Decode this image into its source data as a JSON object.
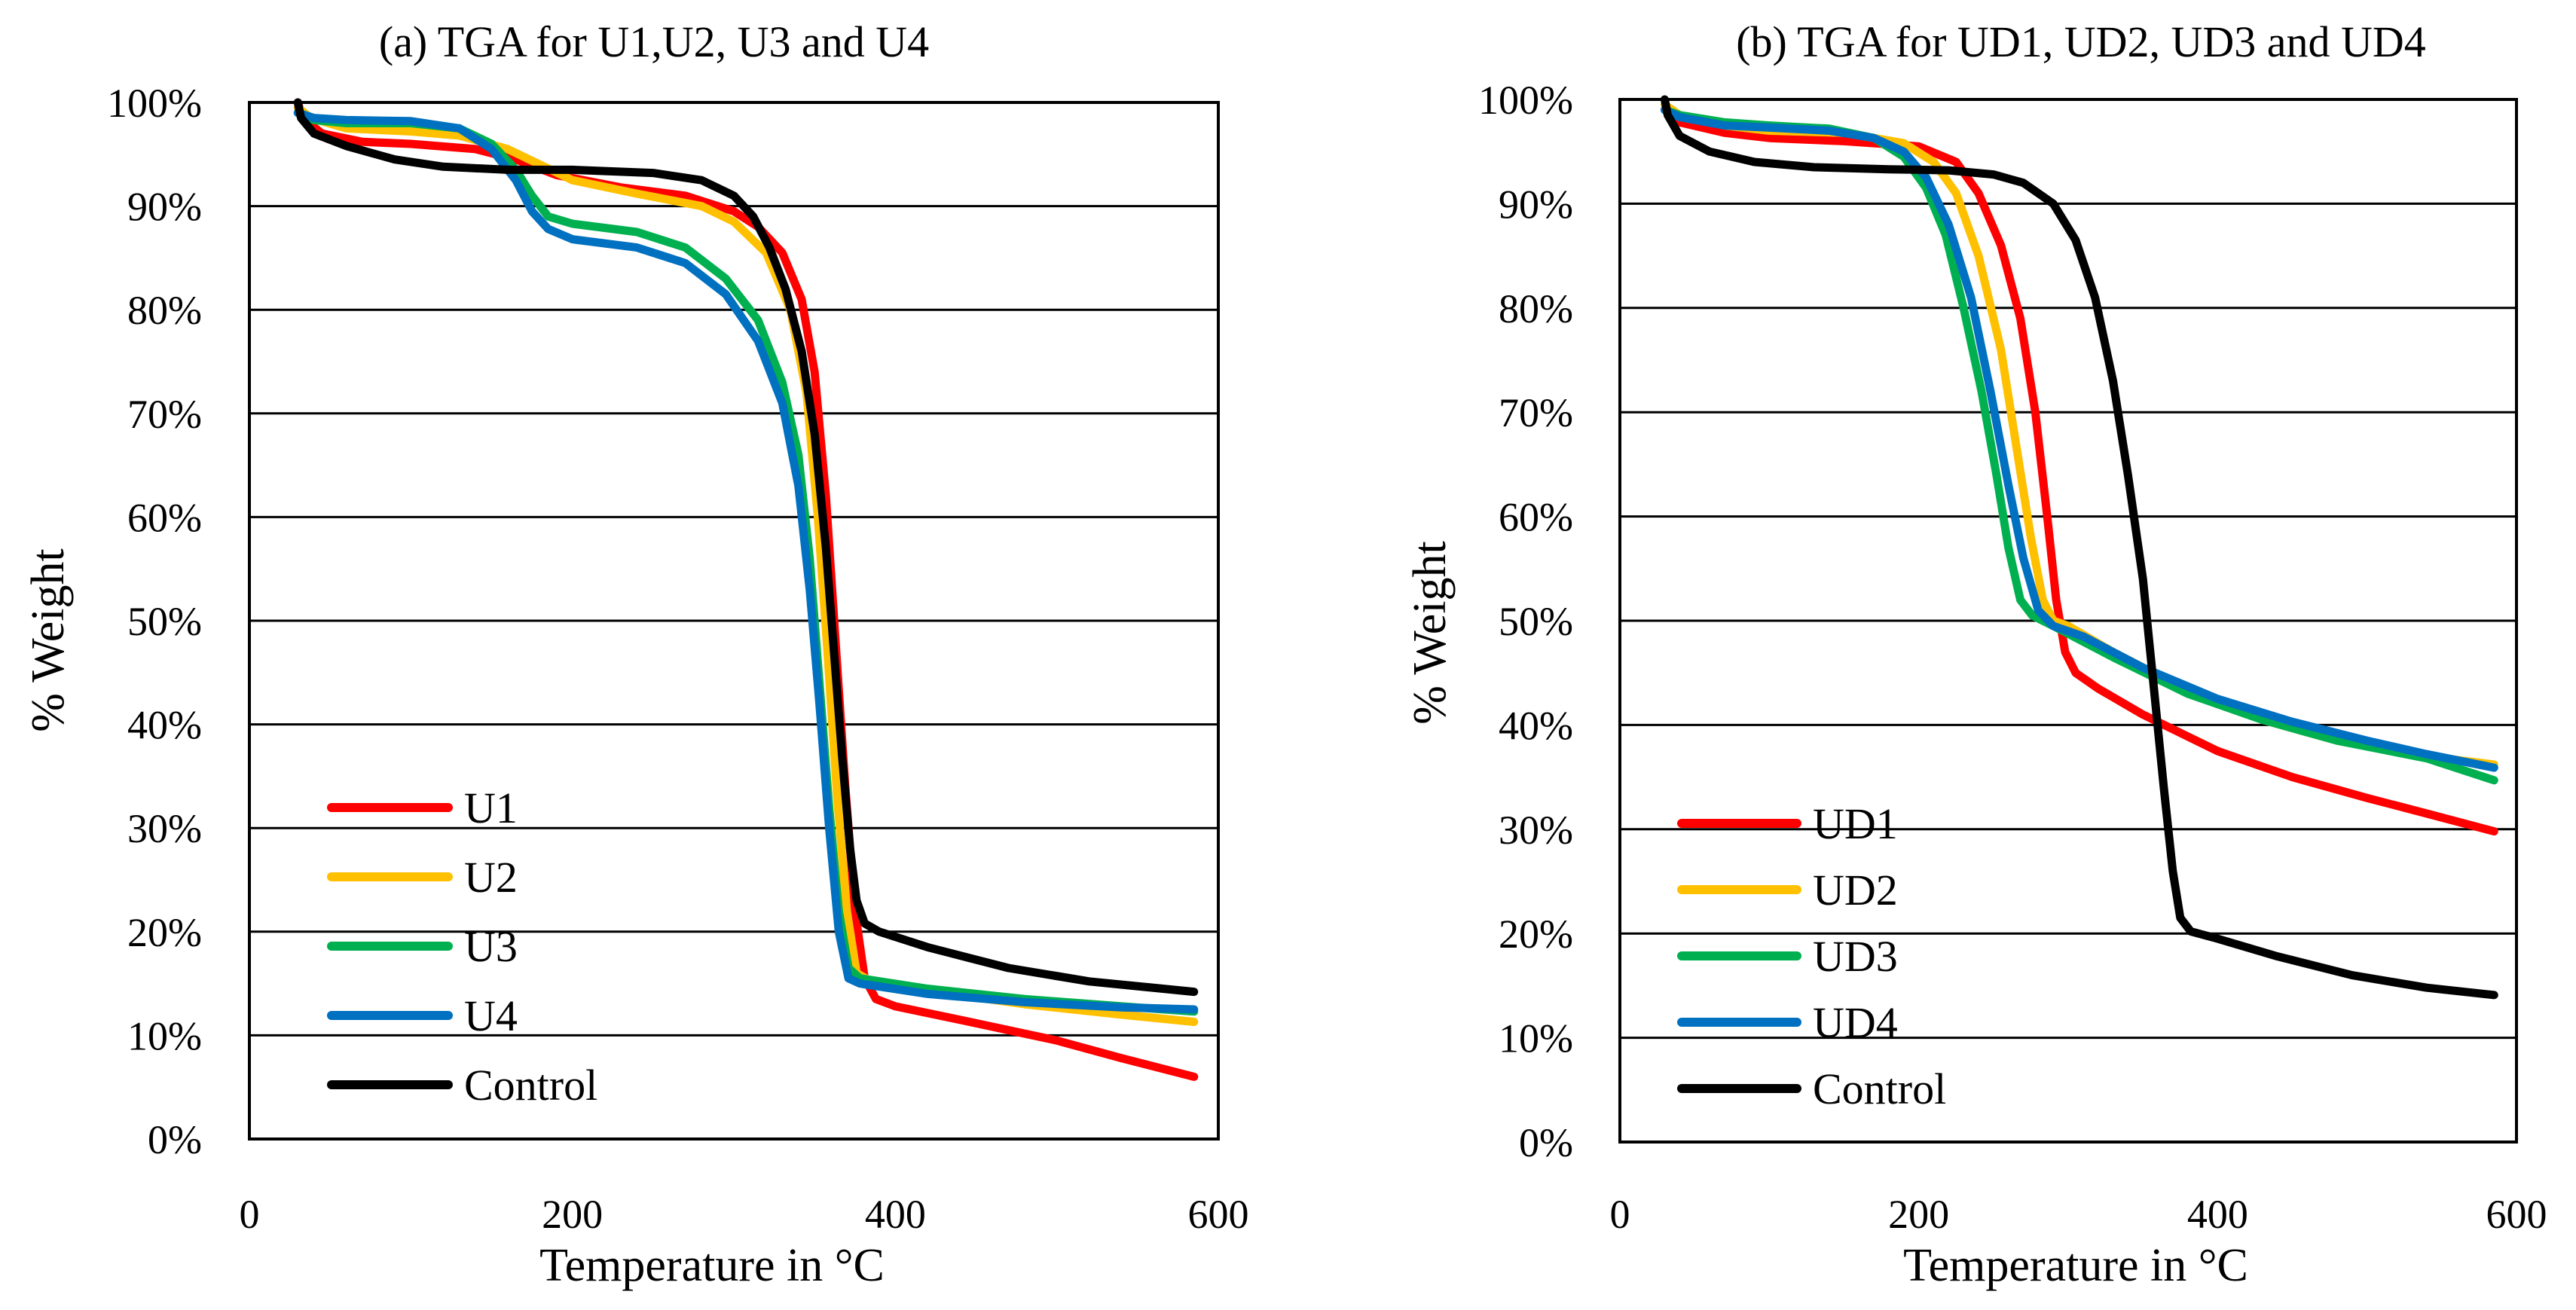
{
  "chart_data": [
    {
      "type": "line",
      "title": "(a) TGA for U1,U2, U3 and U4",
      "xlabel": "Temperature in °C",
      "ylabel": "% Weight",
      "xlim": [
        0,
        600
      ],
      "ylim": [
        0,
        100
      ],
      "x_ticks": [
        0,
        200,
        400,
        600
      ],
      "x_tick_labels": [
        "0",
        "200",
        "400",
        "600"
      ],
      "y_ticks": [
        0,
        10,
        20,
        30,
        40,
        50,
        60,
        70,
        80,
        90,
        100
      ],
      "y_tick_labels": [
        "0%",
        "10%",
        "20%",
        "30%",
        "40%",
        "50%",
        "60%",
        "70%",
        "80%",
        "90%",
        "100%"
      ],
      "grid": true,
      "legend_position": "bottom-left",
      "series": [
        {
          "name": "U1",
          "color": "#FF0000",
          "points": [
            [
              30,
              100
            ],
            [
              33,
              98.5
            ],
            [
              45,
              97
            ],
            [
              70,
              96.2
            ],
            [
              100,
              96
            ],
            [
              140,
              95.5
            ],
            [
              165,
              94.5
            ],
            [
              190,
              93
            ],
            [
              230,
              91.8
            ],
            [
              270,
              91
            ],
            [
              300,
              89.5
            ],
            [
              315,
              88
            ],
            [
              330,
              85.5
            ],
            [
              342,
              81
            ],
            [
              350,
              74
            ],
            [
              357,
              62
            ],
            [
              363,
              48
            ],
            [
              369,
              34
            ],
            [
              375,
              22
            ],
            [
              381,
              15.5
            ],
            [
              388,
              13.5
            ],
            [
              400,
              12.8
            ],
            [
              440,
              11.5
            ],
            [
              500,
              9.5
            ],
            [
              540,
              7.8
            ],
            [
              585,
              6
            ]
          ]
        },
        {
          "name": "U2",
          "color": "#FFC000",
          "points": [
            [
              30,
              99.5
            ],
            [
              38,
              98.5
            ],
            [
              60,
              97.5
            ],
            [
              100,
              97.2
            ],
            [
              130,
              96.8
            ],
            [
              160,
              95.5
            ],
            [
              180,
              94
            ],
            [
              200,
              92.5
            ],
            [
              240,
              91.2
            ],
            [
              280,
              90
            ],
            [
              300,
              88.5
            ],
            [
              320,
              85.5
            ],
            [
              335,
              80
            ],
            [
              345,
              72
            ],
            [
              352,
              60
            ],
            [
              358,
              47
            ],
            [
              364,
              33
            ],
            [
              370,
              22
            ],
            [
              376,
              16
            ],
            [
              385,
              15.2
            ],
            [
              420,
              14.3
            ],
            [
              480,
              13
            ],
            [
              540,
              12
            ],
            [
              585,
              11.3
            ]
          ]
        },
        {
          "name": "U3",
          "color": "#00B050",
          "points": [
            [
              30,
              99
            ],
            [
              40,
              98.3
            ],
            [
              60,
              98
            ],
            [
              100,
              98
            ],
            [
              130,
              97.5
            ],
            [
              150,
              96
            ],
            [
              165,
              93.5
            ],
            [
              175,
              91
            ],
            [
              185,
              89
            ],
            [
              200,
              88.3
            ],
            [
              240,
              87.5
            ],
            [
              270,
              86
            ],
            [
              295,
              83
            ],
            [
              315,
              79
            ],
            [
              330,
              73
            ],
            [
              340,
              66
            ],
            [
              347,
              56
            ],
            [
              353,
              44
            ],
            [
              359,
              32
            ],
            [
              365,
              22
            ],
            [
              371,
              16.5
            ],
            [
              378,
              15.5
            ],
            [
              420,
              14.5
            ],
            [
              480,
              13.5
            ],
            [
              540,
              12.8
            ],
            [
              585,
              12.3
            ]
          ]
        },
        {
          "name": "U4",
          "color": "#0070C0",
          "points": [
            [
              30,
              99
            ],
            [
              40,
              98.5
            ],
            [
              60,
              98.3
            ],
            [
              100,
              98.2
            ],
            [
              130,
              97.5
            ],
            [
              150,
              95.5
            ],
            [
              165,
              92.5
            ],
            [
              175,
              89.5
            ],
            [
              185,
              87.8
            ],
            [
              200,
              86.8
            ],
            [
              240,
              86
            ],
            [
              270,
              84.5
            ],
            [
              295,
              81.5
            ],
            [
              315,
              77
            ],
            [
              330,
              71
            ],
            [
              340,
              63
            ],
            [
              347,
              53
            ],
            [
              353,
              42
            ],
            [
              359,
              30
            ],
            [
              365,
              20
            ],
            [
              371,
              15.5
            ],
            [
              378,
              15
            ],
            [
              420,
              14
            ],
            [
              480,
              13.2
            ],
            [
              540,
              12.7
            ],
            [
              585,
              12.5
            ]
          ]
        },
        {
          "name": "Control",
          "color": "#000000",
          "points": [
            [
              30,
              100
            ],
            [
              32,
              98.5
            ],
            [
              40,
              97
            ],
            [
              60,
              95.8
            ],
            [
              90,
              94.5
            ],
            [
              120,
              93.8
            ],
            [
              160,
              93.5
            ],
            [
              200,
              93.5
            ],
            [
              250,
              93.2
            ],
            [
              280,
              92.5
            ],
            [
              300,
              91
            ],
            [
              312,
              89
            ],
            [
              322,
              86
            ],
            [
              332,
              82
            ],
            [
              342,
              76
            ],
            [
              350,
              68
            ],
            [
              357,
              57
            ],
            [
              362,
              47
            ],
            [
              367,
              37
            ],
            [
              372,
              28
            ],
            [
              376,
              23
            ],
            [
              381,
              20.8
            ],
            [
              390,
              20
            ],
            [
              420,
              18.5
            ],
            [
              470,
              16.5
            ],
            [
              520,
              15.2
            ],
            [
              585,
              14.2
            ]
          ]
        }
      ]
    },
    {
      "type": "line",
      "title": "(b) TGA for UD1, UD2, UD3 and UD4",
      "xlabel": "Temperature in °C",
      "ylabel": "% Weight",
      "xlim": [
        0,
        600
      ],
      "ylim": [
        0,
        100
      ],
      "x_ticks": [
        0,
        200,
        400,
        600
      ],
      "x_tick_labels": [
        "0",
        "200",
        "400",
        "600"
      ],
      "y_ticks": [
        0,
        10,
        20,
        30,
        40,
        50,
        60,
        70,
        80,
        90,
        100
      ],
      "y_tick_labels": [
        "0%",
        "10%",
        "20%",
        "30%",
        "40%",
        "50%",
        "60%",
        "70%",
        "80%",
        "90%",
        "100%"
      ],
      "grid": true,
      "legend_position": "bottom-left",
      "series": [
        {
          "name": "UD1",
          "color": "#FF0000",
          "points": [
            [
              30,
              99
            ],
            [
              40,
              97.8
            ],
            [
              70,
              96.8
            ],
            [
              100,
              96.3
            ],
            [
              150,
              96
            ],
            [
              200,
              95.5
            ],
            [
              225,
              94
            ],
            [
              240,
              91
            ],
            [
              255,
              86
            ],
            [
              268,
              79
            ],
            [
              278,
              70
            ],
            [
              286,
              60
            ],
            [
              292,
              52
            ],
            [
              298,
              47
            ],
            [
              305,
              45
            ],
            [
              320,
              43.5
            ],
            [
              350,
              41
            ],
            [
              400,
              37.5
            ],
            [
              450,
              35
            ],
            [
              500,
              33
            ],
            [
              540,
              31.5
            ],
            [
              585,
              29.8
            ]
          ]
        },
        {
          "name": "UD2",
          "color": "#FFC000",
          "points": [
            [
              30,
              99.5
            ],
            [
              40,
              98.5
            ],
            [
              70,
              97.5
            ],
            [
              100,
              97
            ],
            [
              150,
              96.8
            ],
            [
              190,
              95.8
            ],
            [
              210,
              94
            ],
            [
              225,
              91
            ],
            [
              240,
              85
            ],
            [
              255,
              76
            ],
            [
              265,
              67
            ],
            [
              275,
              58
            ],
            [
              283,
              52
            ],
            [
              290,
              50
            ],
            [
              300,
              49.5
            ],
            [
              330,
              47
            ],
            [
              380,
              43.3
            ],
            [
              430,
              40.5
            ],
            [
              480,
              38.5
            ],
            [
              540,
              37
            ],
            [
              585,
              36.2
            ]
          ]
        },
        {
          "name": "UD3",
          "color": "#00B050",
          "points": [
            [
              30,
              99
            ],
            [
              40,
              98.5
            ],
            [
              70,
              97.8
            ],
            [
              100,
              97.5
            ],
            [
              140,
              97.2
            ],
            [
              170,
              96.3
            ],
            [
              190,
              94.5
            ],
            [
              205,
              91.5
            ],
            [
              218,
              87
            ],
            [
              230,
              80
            ],
            [
              242,
              72
            ],
            [
              252,
              64
            ],
            [
              260,
              57
            ],
            [
              268,
              52
            ],
            [
              276,
              50.5
            ],
            [
              290,
              49.5
            ],
            [
              330,
              46.5
            ],
            [
              380,
              43
            ],
            [
              430,
              40.5
            ],
            [
              480,
              38.5
            ],
            [
              540,
              36.8
            ],
            [
              585,
              34.7
            ]
          ]
        },
        {
          "name": "UD4",
          "color": "#0070C0",
          "points": [
            [
              30,
              99
            ],
            [
              40,
              98.3
            ],
            [
              70,
              97.5
            ],
            [
              100,
              97.3
            ],
            [
              140,
              97
            ],
            [
              170,
              96.3
            ],
            [
              190,
              95
            ],
            [
              205,
              92.5
            ],
            [
              220,
              88
            ],
            [
              235,
              81
            ],
            [
              248,
              72
            ],
            [
              260,
              63
            ],
            [
              270,
              56
            ],
            [
              280,
              51
            ],
            [
              290,
              49.5
            ],
            [
              310,
              48.5
            ],
            [
              350,
              45.5
            ],
            [
              400,
              42.5
            ],
            [
              450,
              40.3
            ],
            [
              500,
              38.5
            ],
            [
              540,
              37.2
            ],
            [
              585,
              35.9
            ]
          ]
        },
        {
          "name": "Control",
          "color": "#000000",
          "points": [
            [
              30,
              100
            ],
            [
              32,
              98.5
            ],
            [
              40,
              96.5
            ],
            [
              60,
              95
            ],
            [
              90,
              94
            ],
            [
              130,
              93.5
            ],
            [
              180,
              93.3
            ],
            [
              220,
              93.2
            ],
            [
              250,
              92.8
            ],
            [
              270,
              92
            ],
            [
              290,
              90
            ],
            [
              305,
              86.5
            ],
            [
              318,
              81
            ],
            [
              330,
              73
            ],
            [
              340,
              64
            ],
            [
              350,
              54
            ],
            [
              357,
              44
            ],
            [
              364,
              34
            ],
            [
              370,
              26
            ],
            [
              375,
              21.5
            ],
            [
              382,
              20.2
            ],
            [
              400,
              19.5
            ],
            [
              440,
              17.8
            ],
            [
              490,
              16
            ],
            [
              540,
              14.8
            ],
            [
              585,
              14.1
            ]
          ]
        }
      ]
    }
  ]
}
